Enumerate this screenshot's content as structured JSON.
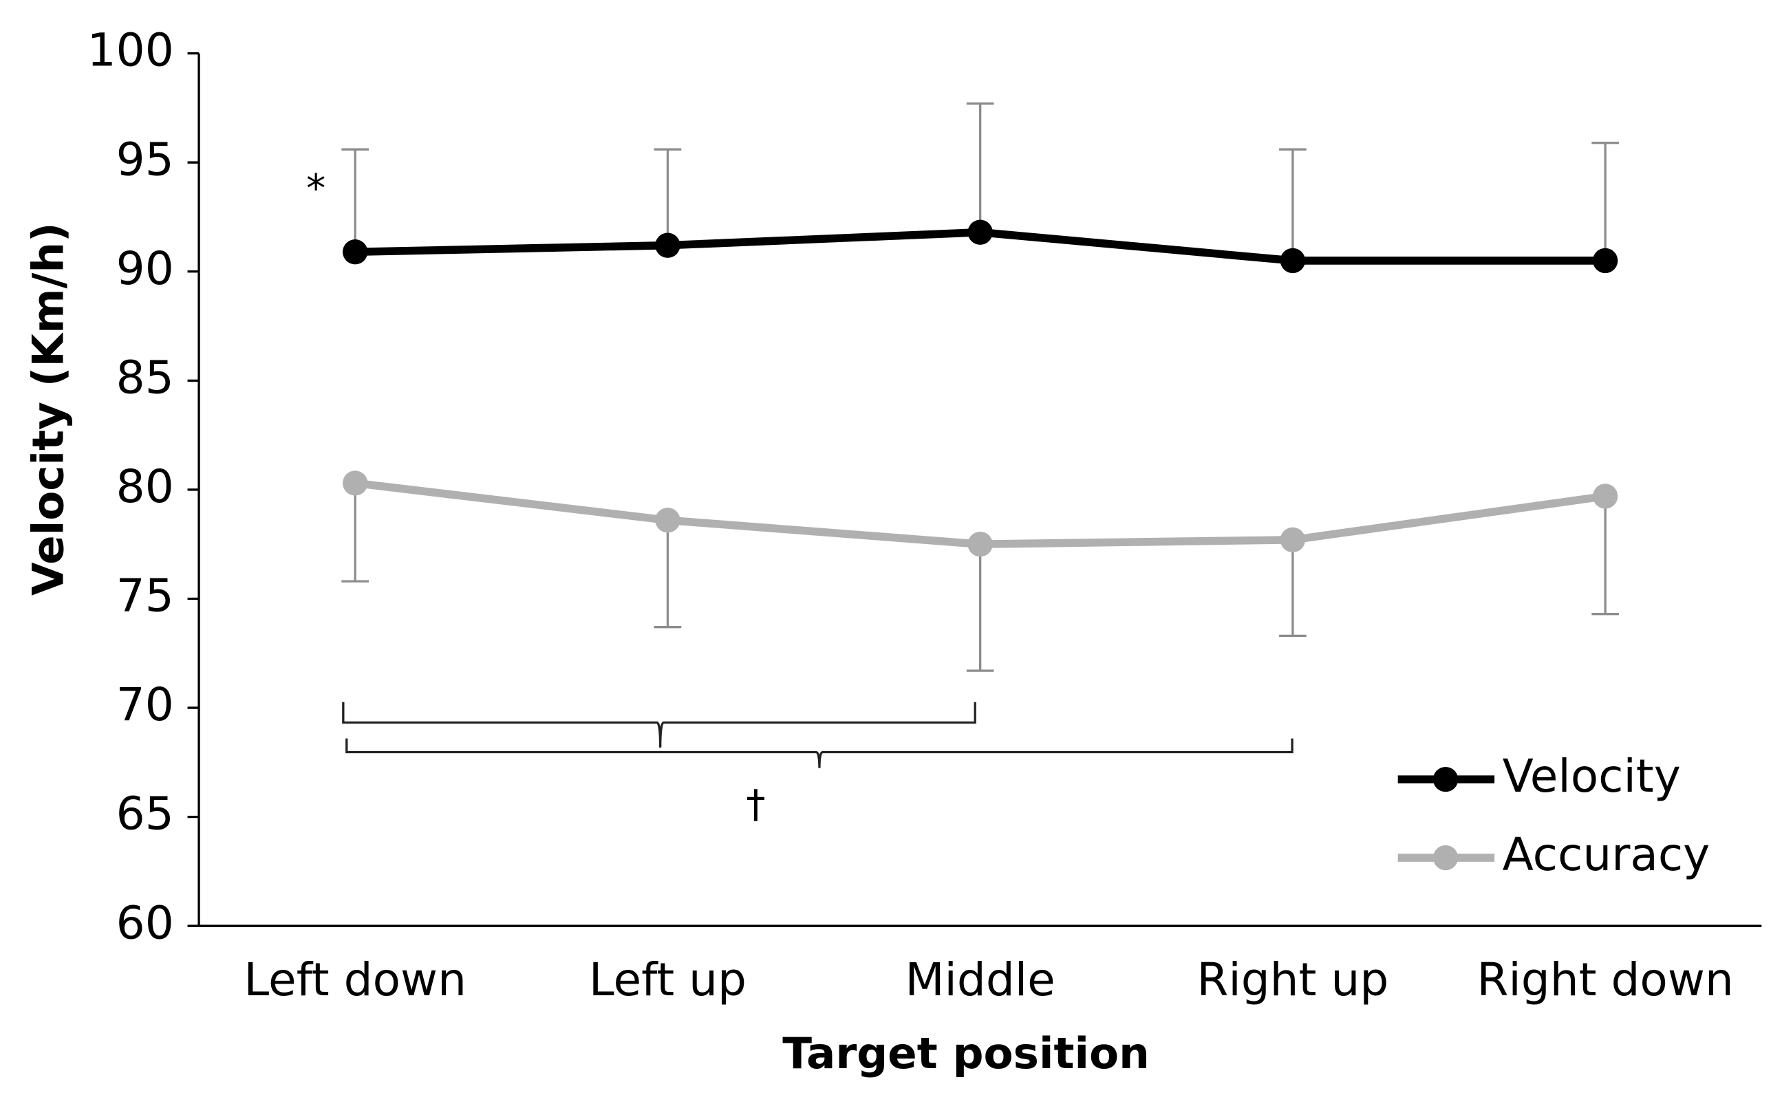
{
  "chart_data": {
    "type": "line",
    "xlabel": "Target position",
    "ylabel": "Velocity (Km/h)",
    "categories": [
      "Left down",
      "Left up",
      "Middle",
      "Right up",
      "Right down"
    ],
    "series": [
      {
        "name": "Velocity",
        "color": "#000000",
        "values": [
          90.9,
          91.2,
          91.8,
          90.5,
          90.5
        ],
        "errors": [
          4.7,
          4.4,
          5.9,
          5.1,
          5.4
        ],
        "error_direction": "up"
      },
      {
        "name": "Accuracy",
        "color": "#b0b0b0",
        "values": [
          80.3,
          78.6,
          77.5,
          77.7,
          79.7
        ],
        "errors": [
          4.5,
          4.9,
          5.8,
          4.4,
          5.4
        ],
        "error_direction": "down"
      }
    ],
    "ylim": [
      60,
      100
    ],
    "yticks": [
      60,
      65,
      70,
      75,
      80,
      85,
      90,
      95,
      100
    ],
    "grid": false,
    "legend": "lower right",
    "annotations": [
      "*",
      "†"
    ]
  }
}
